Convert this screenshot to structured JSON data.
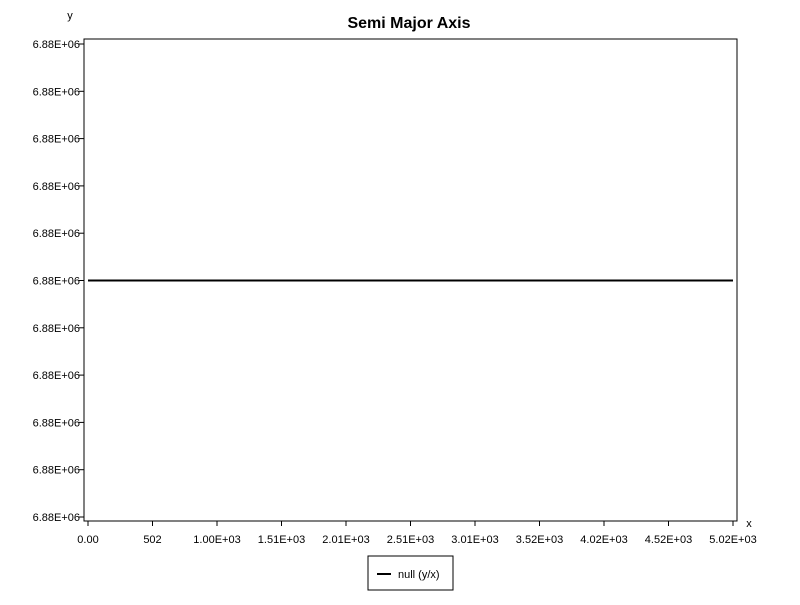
{
  "chart_data": {
    "type": "line",
    "title": "Semi Major Axis",
    "xlabel": "x",
    "ylabel": "y",
    "x_ticks": [
      "0.00",
      "502",
      "1.00E+03",
      "1.51E+03",
      "2.01E+03",
      "2.51E+03",
      "3.01E+03",
      "3.52E+03",
      "4.02E+03",
      "4.52E+03",
      "5.02E+03"
    ],
    "y_ticks": [
      "6.88E+06",
      "6.88E+06",
      "6.88E+06",
      "6.88E+06",
      "6.88E+06",
      "6.88E+06",
      "6.88E+06",
      "6.88E+06",
      "6.88E+06",
      "6.88E+06",
      "6.88E+06"
    ],
    "xlim": [
      0,
      5020
    ],
    "ylim": [
      0,
      10
    ],
    "grid": true,
    "legend_position": "bottom-center",
    "series": [
      {
        "name": "null (y/x)",
        "color": "#000000",
        "x": [
          0,
          5020
        ],
        "y": [
          5,
          5
        ]
      }
    ]
  }
}
